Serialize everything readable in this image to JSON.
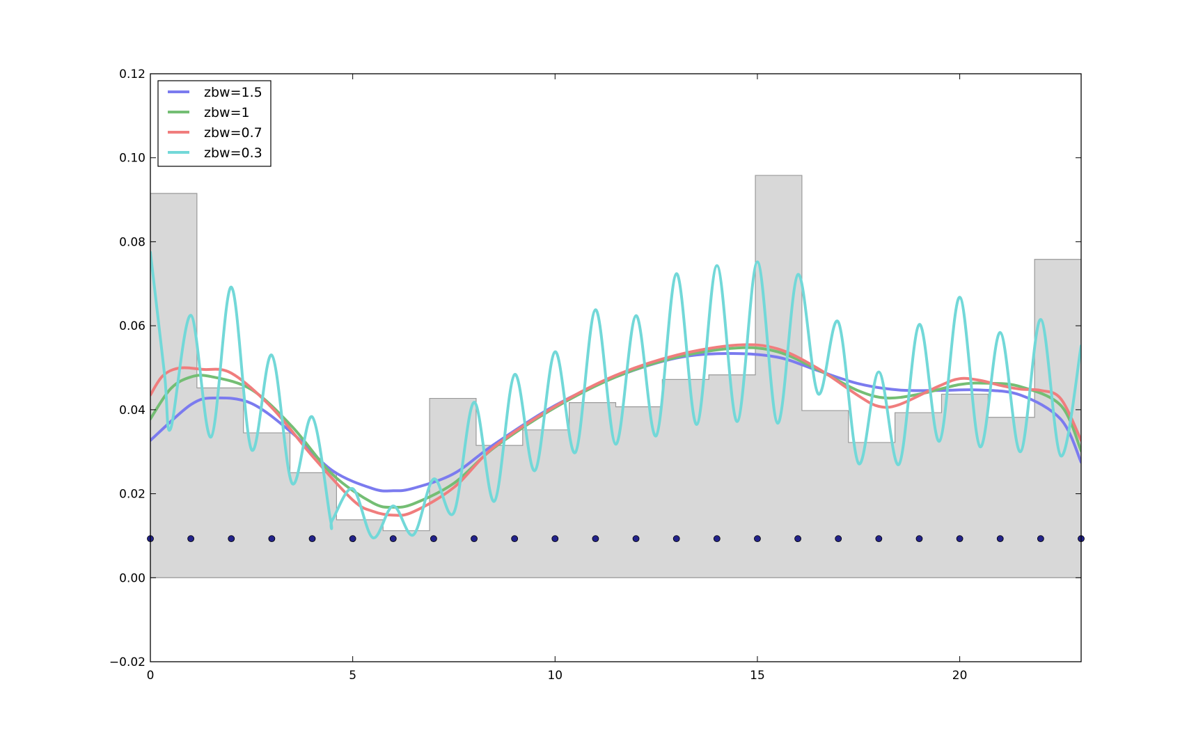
{
  "chart_data": {
    "type": "line",
    "title": "",
    "xlabel": "",
    "ylabel": "",
    "xlim": [
      0,
      23
    ],
    "ylim": [
      -0.02,
      0.12
    ],
    "xticks": [
      0,
      5,
      10,
      15,
      20
    ],
    "xtick_labels": [
      "0",
      "5",
      "10",
      "15",
      "20"
    ],
    "yticks": [
      -0.02,
      0.0,
      0.02,
      0.04,
      0.06,
      0.08,
      0.1,
      0.12
    ],
    "ytick_labels": [
      "−0.02",
      "0.00",
      "0.02",
      "0.04",
      "0.06",
      "0.08",
      "0.10",
      "0.12"
    ],
    "grid": false,
    "legend_position": "top-left",
    "histogram": {
      "color": "#d8d8d8",
      "edge_color": "#999999",
      "edges": [
        0,
        1.15,
        2.3,
        3.45,
        4.6,
        5.75,
        6.9,
        8.05,
        9.2,
        10.35,
        11.5,
        12.65,
        13.8,
        14.95,
        16.1,
        17.25,
        18.4,
        19.55,
        20.7,
        21.85,
        23
      ],
      "heights": [
        0.0915,
        0.0452,
        0.0345,
        0.025,
        0.0138,
        0.0112,
        0.0427,
        0.0315,
        0.0352,
        0.0417,
        0.0407,
        0.0472,
        0.0483,
        0.0958,
        0.0398,
        0.0322,
        0.0393,
        0.0437,
        0.0382,
        0.0758
      ]
    },
    "points": {
      "color": "#22228a",
      "x": [
        0,
        1,
        2,
        3,
        4,
        5,
        6,
        7,
        8,
        9,
        10,
        11,
        12,
        13,
        14,
        15,
        16,
        17,
        18,
        19,
        20,
        21,
        22,
        23
      ],
      "y": 0.0093
    },
    "series": [
      {
        "name": "zbw=1.5",
        "color": "#7b7bef",
        "x": [
          0,
          1,
          1.6,
          2.5,
          3.5,
          4.5,
          5.5,
          6,
          6.5,
          7.5,
          8.5,
          10,
          11.5,
          13,
          14.3,
          15.5,
          16.5,
          17.5,
          18.5,
          19.5,
          20.5,
          21.5,
          22.5,
          23
        ],
        "y": [
          0.0327,
          0.0412,
          0.0428,
          0.0415,
          0.0345,
          0.0255,
          0.0212,
          0.0207,
          0.0213,
          0.0248,
          0.0318,
          0.041,
          0.0478,
          0.0523,
          0.0534,
          0.0525,
          0.0493,
          0.0462,
          0.0447,
          0.0446,
          0.0447,
          0.0435,
          0.0377,
          0.0275
        ]
      },
      {
        "name": "zbw=1",
        "color": "#74be74",
        "x": [
          0,
          0.5,
          1,
          1.5,
          2.5,
          3.5,
          4.5,
          5.5,
          6,
          6.5,
          7.5,
          8.5,
          10,
          11.5,
          13,
          14.5,
          15.5,
          16.5,
          17.5,
          18.2,
          19,
          20,
          20.7,
          21.5,
          22.5,
          23
        ],
        "y": [
          0.0378,
          0.045,
          0.0478,
          0.0479,
          0.0448,
          0.036,
          0.0246,
          0.0178,
          0.0168,
          0.0176,
          0.0225,
          0.031,
          0.0405,
          0.0478,
          0.0525,
          0.0547,
          0.0538,
          0.0495,
          0.0445,
          0.0428,
          0.0437,
          0.046,
          0.0463,
          0.0455,
          0.041,
          0.0302
        ]
      },
      {
        "name": "zbw=0.7",
        "color": "#f07d7d",
        "x": [
          0,
          0.3,
          0.7,
          1.3,
          2,
          3,
          4,
          5,
          5.5,
          6,
          6.5,
          7.5,
          8.5,
          10,
          11.5,
          13,
          14.5,
          15.5,
          16.5,
          17.5,
          18,
          18.5,
          19.5,
          20,
          20.5,
          21,
          21.5,
          22,
          22.5,
          23
        ],
        "y": [
          0.0435,
          0.048,
          0.0499,
          0.0496,
          0.0487,
          0.0405,
          0.029,
          0.0185,
          0.0158,
          0.0149,
          0.0157,
          0.0215,
          0.0312,
          0.0408,
          0.0482,
          0.053,
          0.0554,
          0.0545,
          0.0498,
          0.0433,
          0.0408,
          0.0412,
          0.0457,
          0.0474,
          0.047,
          0.0458,
          0.0449,
          0.0446,
          0.0426,
          0.0327
        ]
      },
      {
        "name": "zbw=0.3",
        "color": "#72d8d8",
        "x": [
          0,
          0.35,
          0.5,
          1,
          1.5,
          2,
          2.5,
          3,
          3.5,
          4,
          4.45,
          4.5,
          5,
          5.5,
          6,
          6.5,
          7,
          7.5,
          8,
          8.5,
          9,
          9.5,
          10,
          10.5,
          11,
          11.5,
          12,
          12.5,
          13,
          13.5,
          14,
          14.5,
          15,
          15.5,
          16,
          16.5,
          17,
          17.5,
          18,
          18.5,
          19,
          19.5,
          20,
          20.5,
          21,
          21.5,
          22,
          22.5,
          23
        ],
        "y": [
          0.0775,
          0.0485,
          0.0355,
          0.0625,
          0.0335,
          0.0692,
          0.0305,
          0.053,
          0.0225,
          0.0383,
          0.0138,
          0.0138,
          0.0212,
          0.0095,
          0.0171,
          0.0102,
          0.0235,
          0.0155,
          0.0418,
          0.0182,
          0.0484,
          0.0255,
          0.0538,
          0.0298,
          0.0638,
          0.0318,
          0.0624,
          0.0338,
          0.0724,
          0.0365,
          0.0743,
          0.0372,
          0.0752,
          0.0368,
          0.0722,
          0.0438,
          0.0609,
          0.0272,
          0.049,
          0.027,
          0.0603,
          0.0325,
          0.0668,
          0.0312,
          0.0584,
          0.03,
          0.0615,
          0.029,
          0.0552
        ]
      }
    ]
  }
}
